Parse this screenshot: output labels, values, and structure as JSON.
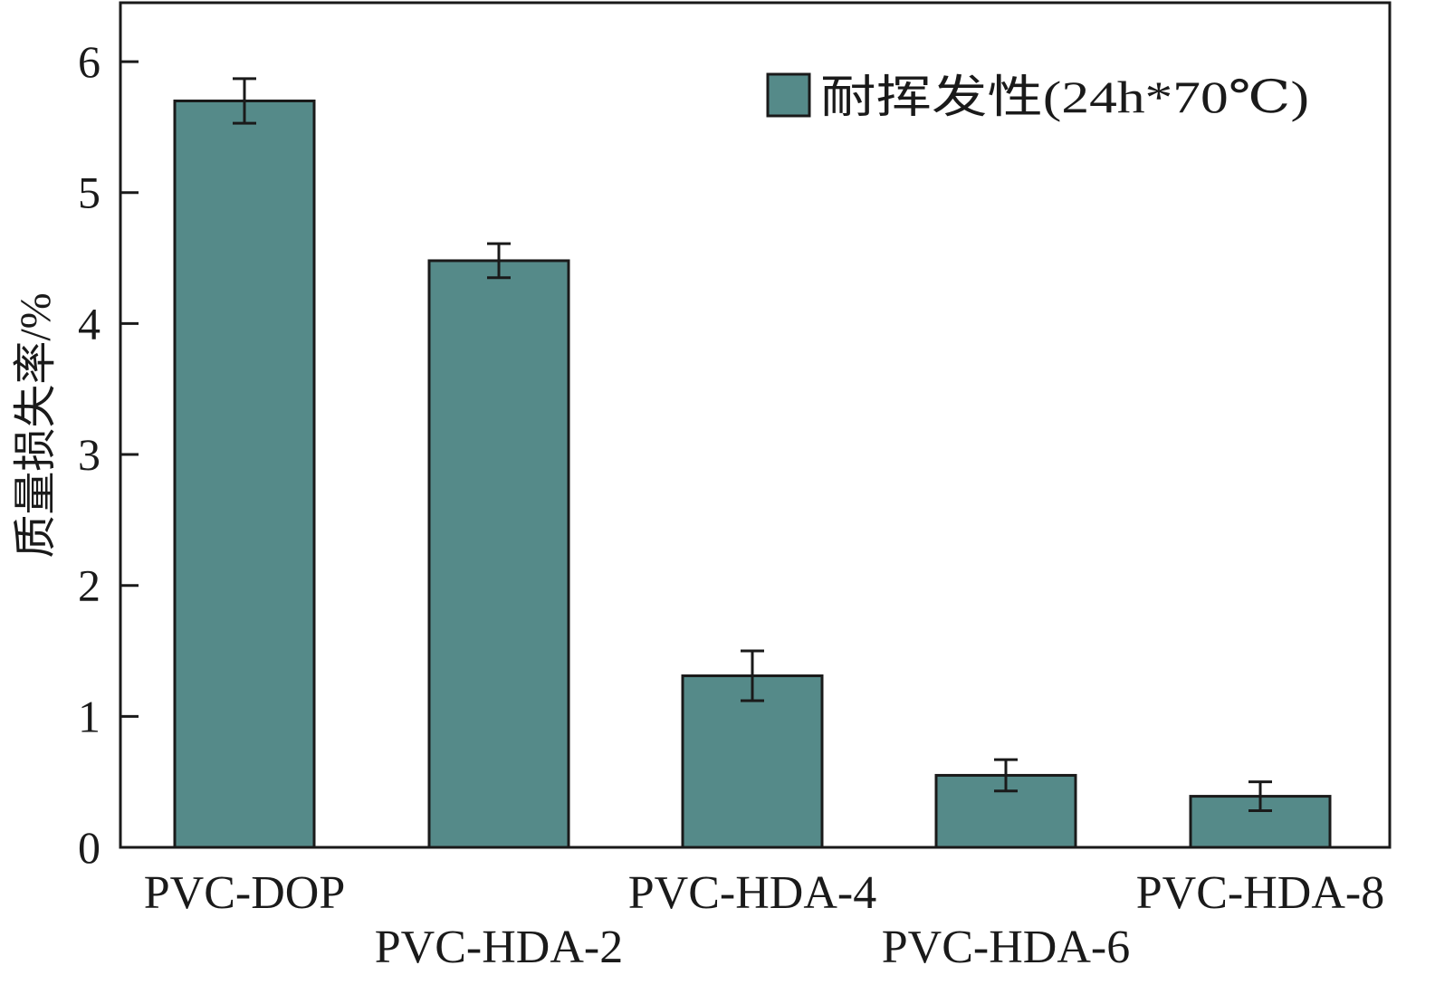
{
  "chart_data": {
    "type": "bar",
    "categories": [
      "PVC-DOP",
      "PVC-HDA-2",
      "PVC-HDA-4",
      "PVC-HDA-6",
      "PVC-HDA-8"
    ],
    "series": [
      {
        "name": "耐挥发性(24h*70℃)",
        "values": [
          5.7,
          4.48,
          1.31,
          0.55,
          0.39
        ],
        "errors": [
          0.17,
          0.13,
          0.19,
          0.12,
          0.11
        ]
      }
    ],
    "title": "",
    "xlabel": "",
    "ylabel": "质量损失率/%",
    "ylim": [
      0,
      6.45
    ],
    "yticks": [
      0,
      1,
      2,
      3,
      4,
      5,
      6
    ],
    "grid": false,
    "legend_position": "top-right",
    "colors": {
      "bar_fill": "#558a89",
      "bar_stroke": "#1a1a1a",
      "axis": "#1a1a1a"
    }
  }
}
